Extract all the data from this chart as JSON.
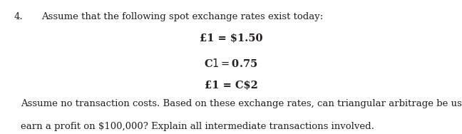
{
  "line1_num": "4.",
  "line1_text": "Assume that the following spot exchange rates exist today:",
  "center_lines": [
    "£1 = $1.50",
    "C$1 = $0.75",
    "£1 = C$2"
  ],
  "bottom_line1": "Assume no transaction costs. Based on these exchange rates, can triangular arbitrage be used to",
  "bottom_line2": "earn a profit on $100,000? Explain all intermediate transactions involved.",
  "bg_color": "#ffffff",
  "text_color": "#231f20",
  "font_size_main": 9.5,
  "font_size_center": 10.5,
  "figure_width": 6.48,
  "figure_height": 1.88
}
